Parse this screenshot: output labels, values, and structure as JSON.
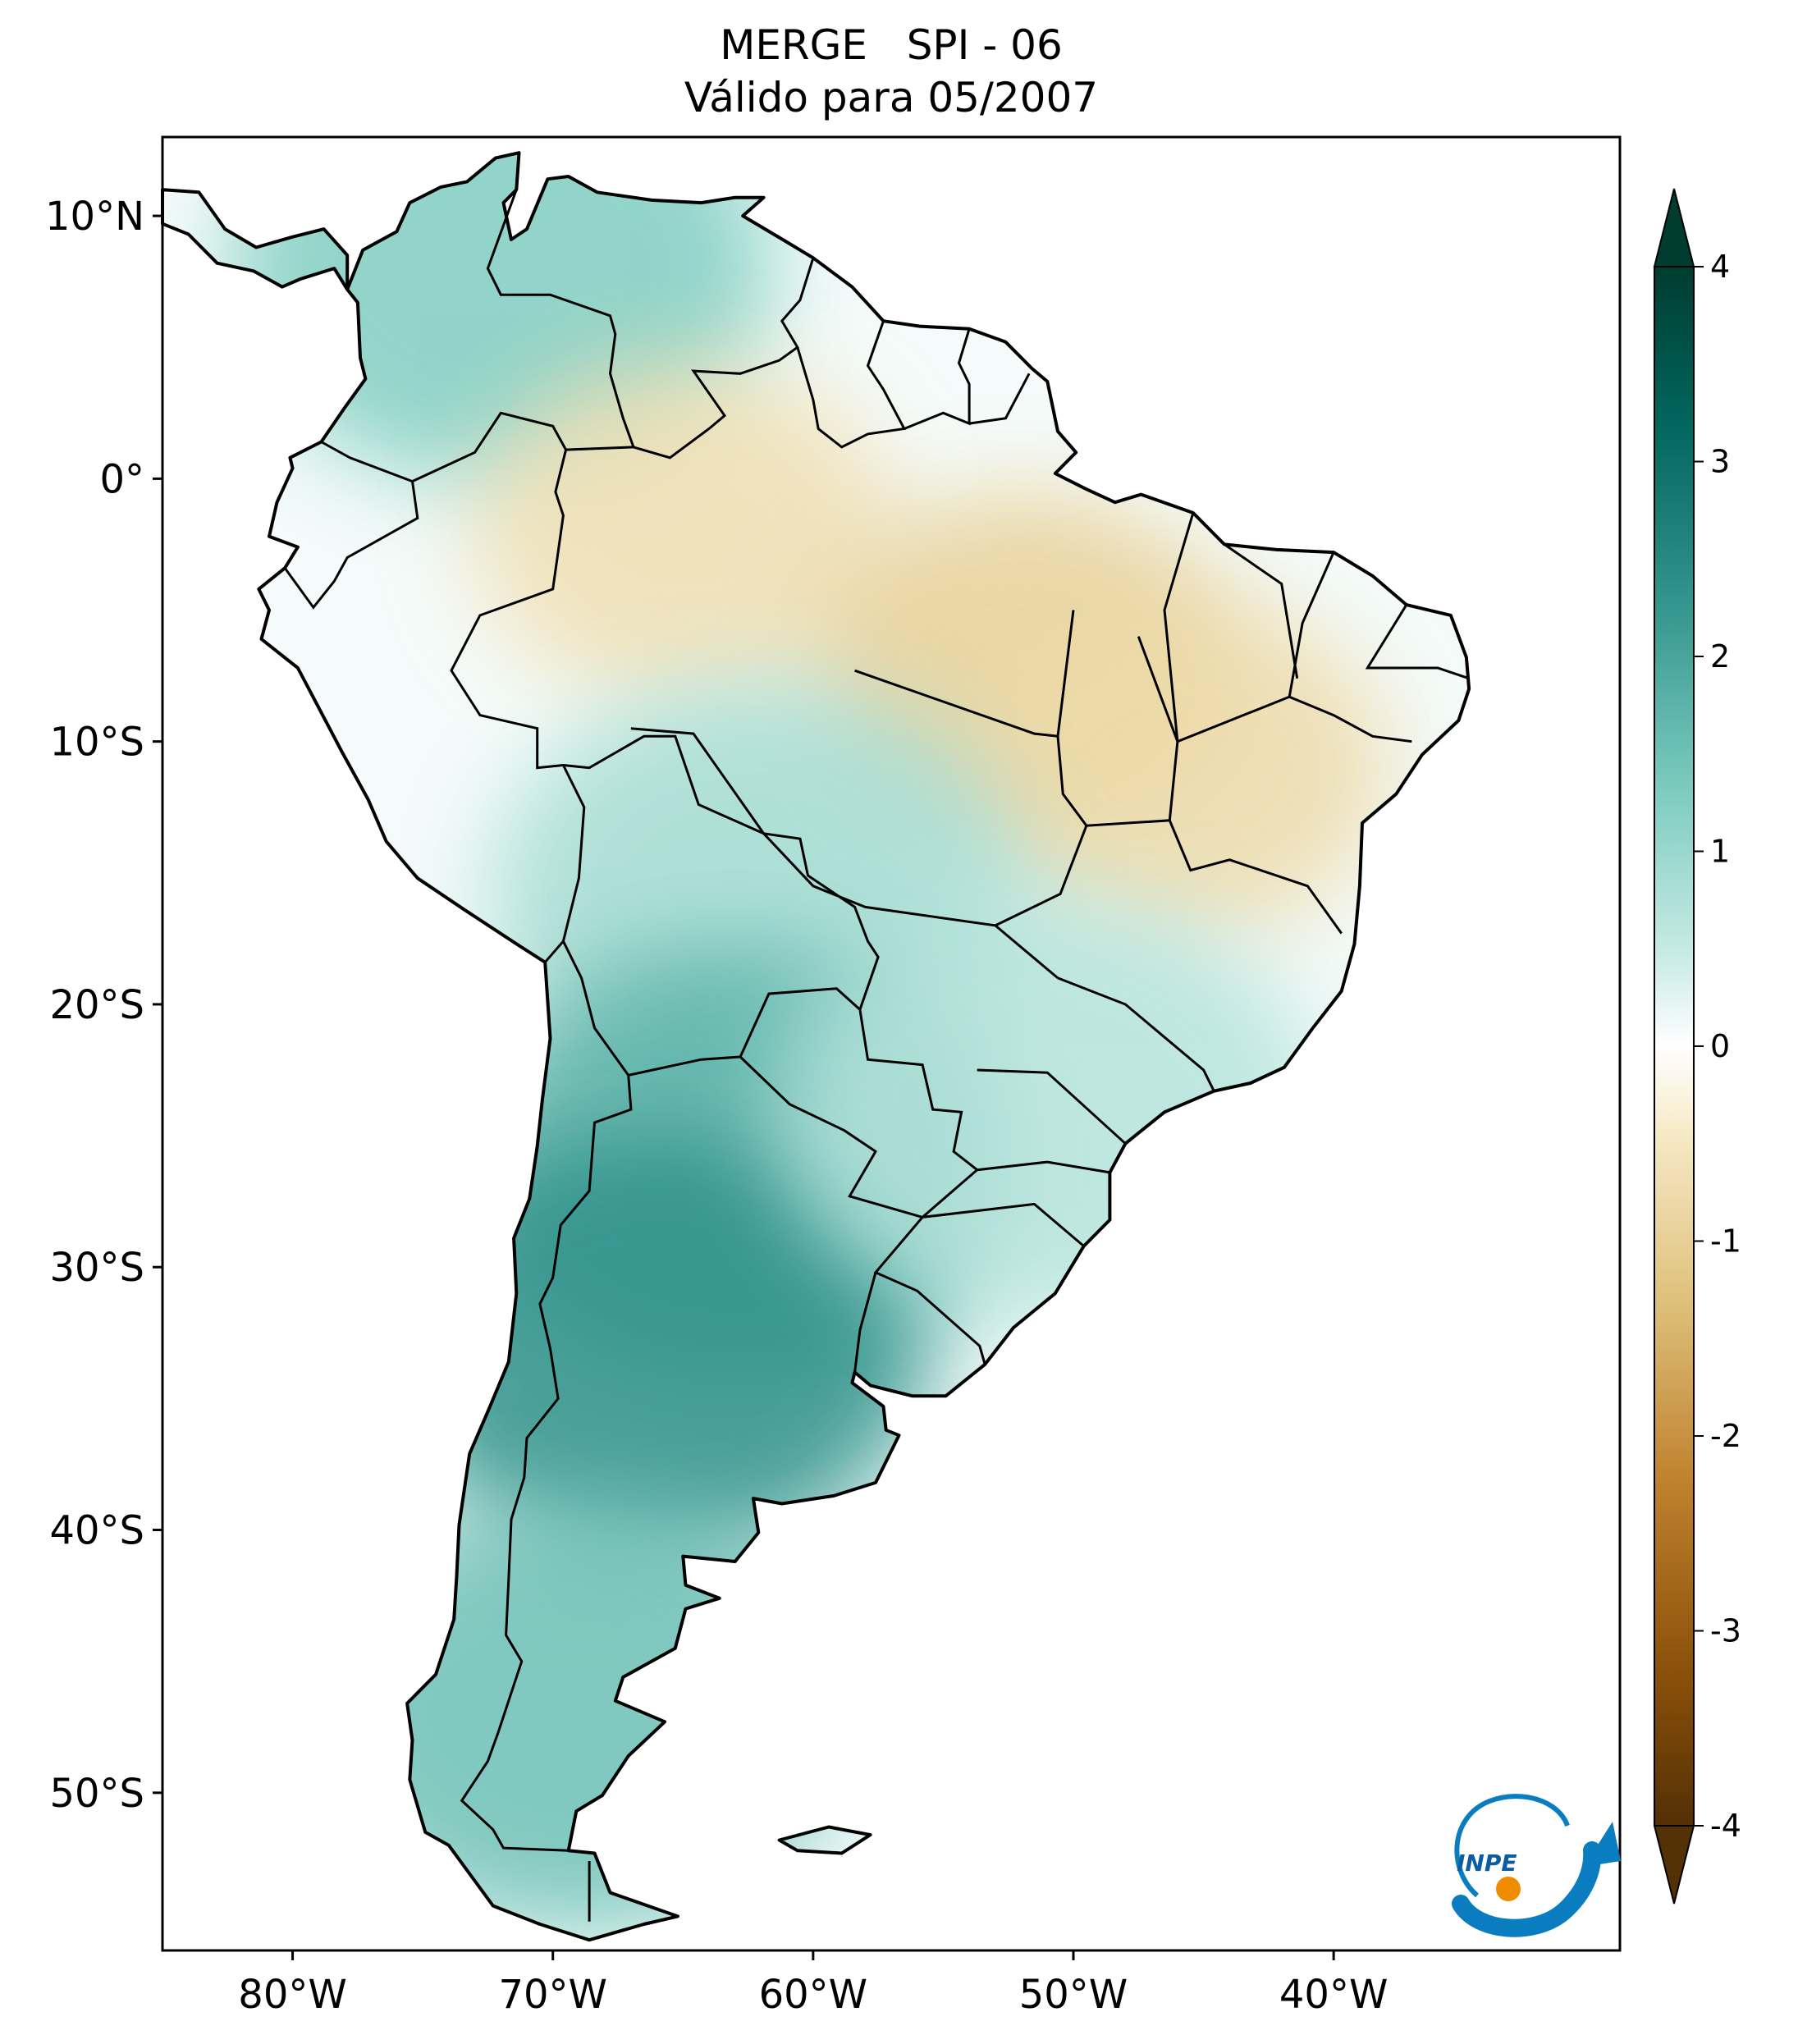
{
  "title": {
    "line1": "MERGE   SPI - 06",
    "line2": "Válido para 05/2007"
  },
  "map": {
    "projection": "PlateCarree",
    "lon_range": [
      -85,
      -29
    ],
    "lat_range": [
      -56,
      13
    ],
    "lat_ticks": [
      {
        "value": 10,
        "label": "10°N"
      },
      {
        "value": 0,
        "label": "0°"
      },
      {
        "value": -10,
        "label": "10°S"
      },
      {
        "value": -20,
        "label": "20°S"
      },
      {
        "value": -30,
        "label": "30°S"
      },
      {
        "value": -40,
        "label": "40°S"
      },
      {
        "value": -50,
        "label": "50°S"
      }
    ],
    "lon_ticks": [
      {
        "value": -80,
        "label": "80°W"
      },
      {
        "value": -70,
        "label": "70°W"
      },
      {
        "value": -60,
        "label": "60°W"
      },
      {
        "value": -50,
        "label": "50°W"
      },
      {
        "value": -40,
        "label": "40°W"
      }
    ],
    "colormap": "BrBG",
    "anomaly_regions": [
      {
        "name": "northwest-colombia-venezuela",
        "polarity": "wet",
        "value": 1.6,
        "lon": -72,
        "lat": 8
      },
      {
        "name": "amazon-north",
        "polarity": "dry",
        "value": -1.0,
        "lon": -65,
        "lat": -2
      },
      {
        "name": "para-central-brazil",
        "polarity": "dry",
        "value": -1.3,
        "lon": -52,
        "lat": -7
      },
      {
        "name": "tocantins-bahia",
        "polarity": "dry",
        "value": -1.1,
        "lon": -46,
        "lat": -11
      },
      {
        "name": "bolivia-east",
        "polarity": "wet",
        "value": 1.2,
        "lon": -62,
        "lat": -16
      },
      {
        "name": "paraguay-north-argentina",
        "polarity": "wet",
        "value": 2.0,
        "lon": -63,
        "lat": -26
      },
      {
        "name": "central-argentina",
        "polarity": "wet",
        "value": 2.5,
        "lon": -66,
        "lat": -33
      },
      {
        "name": "patagonia",
        "polarity": "wet",
        "value": 1.8,
        "lon": -69,
        "lat": -47
      },
      {
        "name": "south-brazil",
        "polarity": "wet",
        "value": 1.0,
        "lon": -51,
        "lat": -24
      }
    ]
  },
  "colorbar": {
    "min": -4,
    "max": 4,
    "extend": "both",
    "ticks": [
      {
        "value": 4,
        "label": "4"
      },
      {
        "value": 3,
        "label": "3"
      },
      {
        "value": 2,
        "label": "2"
      },
      {
        "value": 1,
        "label": "1"
      },
      {
        "value": 0,
        "label": "0"
      },
      {
        "value": -1,
        "label": "-1"
      },
      {
        "value": -2,
        "label": "-2"
      },
      {
        "value": -3,
        "label": "-3"
      },
      {
        "value": -4,
        "label": "-4"
      }
    ],
    "colors": [
      "#543005",
      "#8c510a",
      "#bf812d",
      "#dfc27d",
      "#f6e8c3",
      "#ffffff",
      "#c7eae5",
      "#80cdc1",
      "#35978f",
      "#01665e",
      "#003c30"
    ]
  },
  "logo": {
    "text": "INPE",
    "icon": "inpe-logo-icon"
  }
}
